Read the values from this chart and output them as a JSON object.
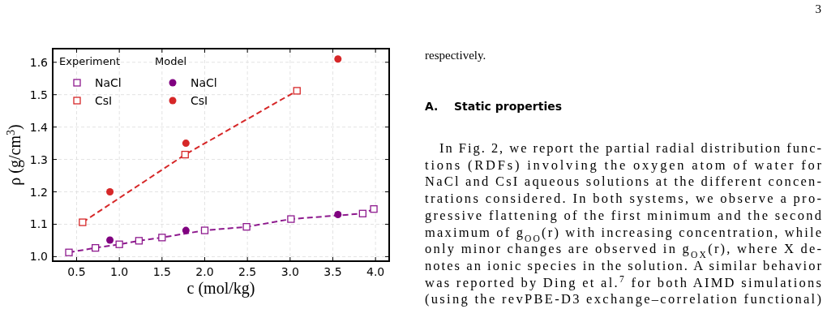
{
  "chart_data": {
    "type": "scatter",
    "xlabel": "c (mol/kg)",
    "ylabel": "ρ (g/cm$^{3}$)",
    "xlim": [
      0.22,
      4.16
    ],
    "xticks": [
      {
        "value": 0.5,
        "label": "0.5"
      },
      {
        "value": 1,
        "label": "1.0"
      },
      {
        "value": 1.5,
        "label": "1.5"
      },
      {
        "value": 2,
        "label": "2.0"
      },
      {
        "value": 2.5,
        "label": "2.5"
      },
      {
        "value": 3,
        "label": "3.0"
      },
      {
        "value": 3.5,
        "label": "3.5"
      },
      {
        "value": 4,
        "label": "4.0"
      }
    ],
    "ylim": [
      0.986,
      1.642
    ],
    "yticks": [
      {
        "value": 1,
        "label": "1.0"
      },
      {
        "value": 1.1,
        "label": "1.1"
      },
      {
        "value": 1.2,
        "label": "1.2"
      },
      {
        "value": 1.3,
        "label": "1.3"
      },
      {
        "value": 1.4,
        "label": "1.4"
      },
      {
        "value": 1.5,
        "label": "1.5"
      },
      {
        "value": 1.6,
        "label": "1.6"
      }
    ],
    "grid": true,
    "legend": "top left",
    "series": [
      {
        "name": "NaCl",
        "type": "line",
        "marker": "square",
        "line_style": "dashed",
        "color": "#8e1a8e",
        "x": [
          0.41,
          0.72,
          1.0,
          1.23,
          1.5,
          2.0,
          2.49,
          3.01,
          3.85,
          3.98
        ],
        "values": [
          1.013,
          1.027,
          1.038,
          1.049,
          1.059,
          1.081,
          1.092,
          1.116,
          1.133,
          1.147
        ]
      },
      {
        "name": "CsI",
        "type": "line",
        "marker": "square",
        "line_style": "dashed",
        "color": "#d62728",
        "x": [
          0.57,
          1.77,
          3.08
        ],
        "values": [
          1.106,
          1.315,
          1.512
        ]
      },
      {
        "name": "NaCl",
        "type": "scatter",
        "marker": "circle",
        "color": "#800080",
        "x": [
          0.89,
          1.78,
          3.56
        ],
        "values": [
          1.051,
          1.081,
          1.13
        ]
      },
      {
        "name": "CsI",
        "type": "scatter",
        "marker": "circle",
        "color": "#d62728",
        "x": [
          0.89,
          1.78,
          3.56
        ],
        "values": [
          1.2,
          1.35,
          1.61
        ]
      }
    ],
    "annotations": [
      "Experiment",
      "Model",
      "3",
      "respectively.",
      "A.    Static properties",
      "In Fig. 2, we report the partial radial distribution func-",
      "tions (RDFs) involving the oxygen atom of water for",
      "NaCl and CsI aqueous solutions at the different concen-",
      "trations considered. In both systems, we observe a pro-",
      "gressive flattening of the first minimum and the second",
      "maximum of g$_{OO}$(r) with increasing concentration, while",
      "only minor changes are observed in g$_{OX}$(r), where X de-",
      "notes an ionic species in the solution. A similar behavior",
      "was reported by Ding et al.$^{7}$ for both AIMD simulations",
      "(using the revPBE-D3 exchange–correlation functional)"
    ]
  }
}
